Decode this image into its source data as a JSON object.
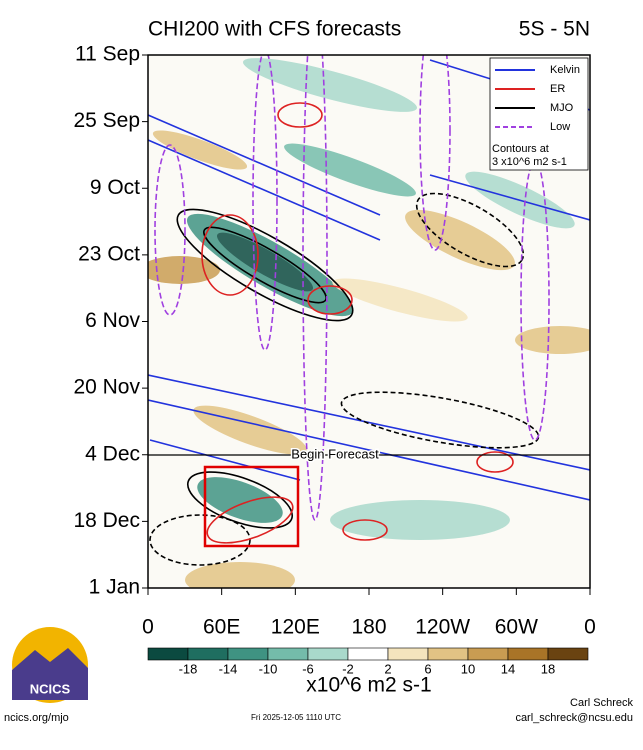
{
  "chart_data": {
    "type": "hovmoller",
    "title": "CHI200 with CFS forecasts",
    "subtitle": "5S - 5N",
    "y_categories": [
      "11 Sep",
      "25 Sep",
      "9 Oct",
      "23 Oct",
      "6 Nov",
      "20 Nov",
      "4 Dec",
      "18 Dec",
      "1 Jan"
    ],
    "xlim": [
      0,
      360
    ],
    "xticks": [
      0,
      {
        "value": 60,
        "label": "60E"
      },
      {
        "value": 120,
        "label": "120E"
      },
      180,
      {
        "value": 240,
        "label": "120W"
      },
      {
        "value": 300,
        "label": "60W"
      },
      {
        "value": 360,
        "label": "0"
      }
    ],
    "series": [
      {
        "name": "Kelvin",
        "color": "#2233dd"
      },
      {
        "name": "ER",
        "color": "#dd2222"
      },
      {
        "name": "MJO",
        "color": "#000000"
      },
      {
        "name": "Low",
        "color": "#a040e0"
      }
    ],
    "legend_note": [
      "Contours at",
      "3 x10^6 m2 s-1"
    ],
    "annotation": "Begin Forecast",
    "colorbar": {
      "ticks": [
        -18,
        -14,
        -10,
        -6,
        -2,
        2,
        6,
        10,
        14,
        18
      ],
      "colors": [
        "#0b4a40",
        "#1f6e60",
        "#3f9382",
        "#74bcaa",
        "#a9d9cb",
        "#ffffff",
        "#f4e4bd",
        "#e2c384",
        "#c99c52",
        "#a97427",
        "#6a4311"
      ],
      "label": "x10^6 m2 s-1"
    }
  },
  "footer": {
    "logo": "NCICS",
    "url": "ncics.org/mjo",
    "timestamp": "Fri 2025-12-05 1110 UTC",
    "author": "Carl Schreck",
    "email": "carl_schreck@ncsu.edu"
  }
}
